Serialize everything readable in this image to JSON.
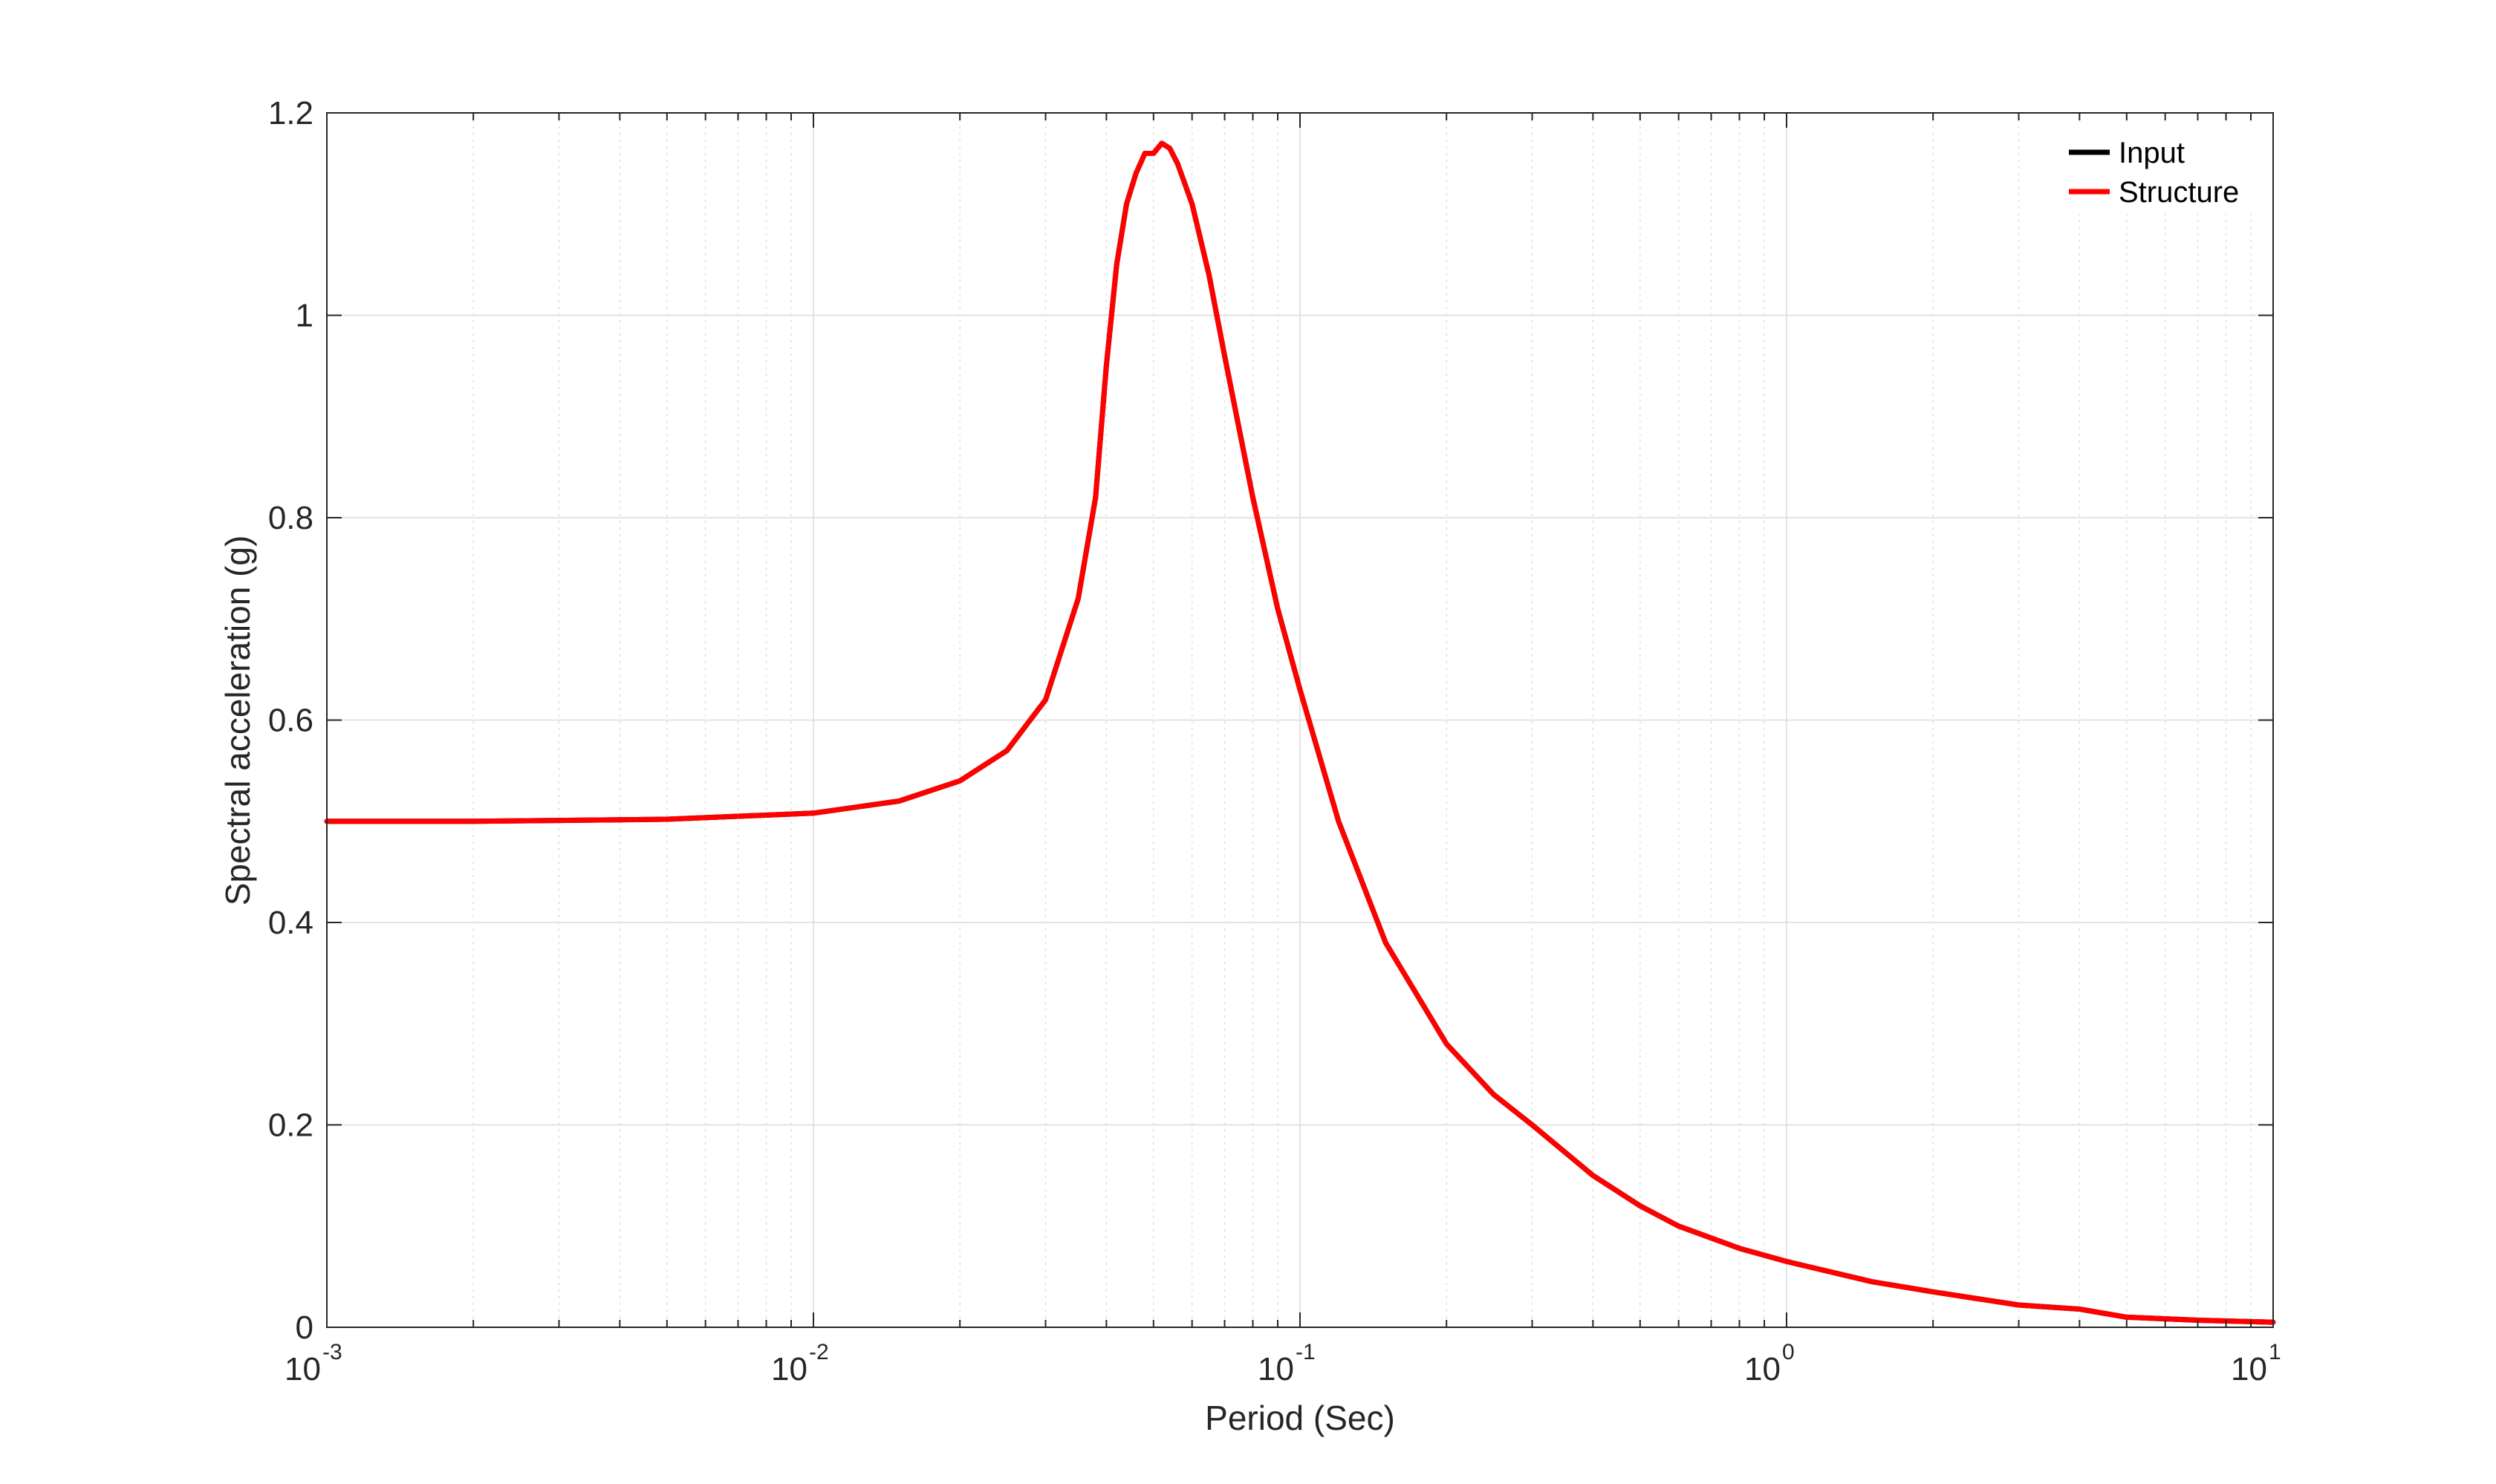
{
  "chart_data": {
    "type": "line",
    "title": "",
    "xlabel": "Period (Sec)",
    "ylabel": "Spectral acceleration (g)",
    "x_scale": "log",
    "xlim": [
      0.001,
      10
    ],
    "ylim": [
      0,
      1.2
    ],
    "grid": true,
    "legend_position": "top-right",
    "x_ticks": [
      {
        "base": "10",
        "exp": "-3",
        "value": 0.001
      },
      {
        "base": "10",
        "exp": "-2",
        "value": 0.01
      },
      {
        "base": "10",
        "exp": "-1",
        "value": 0.1
      },
      {
        "base": "10",
        "exp": "0",
        "value": 1
      },
      {
        "base": "10",
        "exp": "1",
        "value": 10
      }
    ],
    "y_ticks": [
      "0",
      "0.2",
      "0.4",
      "0.6",
      "0.8",
      "1",
      "1.2"
    ],
    "series": [
      {
        "name": "Input",
        "color": "#000000",
        "x": [
          0.001,
          0.002,
          0.005,
          0.01,
          0.015,
          0.02,
          0.025,
          0.03,
          0.035,
          0.038,
          0.04,
          0.042,
          0.044,
          0.046,
          0.048,
          0.05,
          0.052,
          0.054,
          0.056,
          0.058,
          0.06,
          0.065,
          0.07,
          0.08,
          0.09,
          0.1,
          0.12,
          0.15,
          0.2,
          0.25,
          0.3,
          0.4,
          0.5,
          0.6,
          0.8,
          1,
          1.5,
          2,
          3,
          4,
          5,
          7,
          10
        ],
        "y": [
          0.5,
          0.5,
          0.502,
          0.508,
          0.52,
          0.54,
          0.57,
          0.62,
          0.72,
          0.82,
          0.95,
          1.05,
          1.11,
          1.14,
          1.16,
          1.16,
          1.17,
          1.165,
          1.15,
          1.13,
          1.11,
          1.04,
          0.96,
          0.82,
          0.71,
          0.63,
          0.5,
          0.38,
          0.28,
          0.23,
          0.2,
          0.15,
          0.12,
          0.1,
          0.078,
          0.065,
          0.045,
          0.035,
          0.022,
          0.018,
          0.01,
          0.007,
          0.005
        ]
      },
      {
        "name": "Structure",
        "color": "#ff0000",
        "x": [
          0.001,
          0.002,
          0.005,
          0.01,
          0.015,
          0.02,
          0.025,
          0.03,
          0.035,
          0.038,
          0.04,
          0.042,
          0.044,
          0.046,
          0.048,
          0.05,
          0.052,
          0.054,
          0.056,
          0.058,
          0.06,
          0.065,
          0.07,
          0.08,
          0.09,
          0.1,
          0.12,
          0.15,
          0.2,
          0.25,
          0.3,
          0.4,
          0.5,
          0.6,
          0.8,
          1,
          1.5,
          2,
          3,
          4,
          5,
          7,
          10
        ],
        "y": [
          0.5,
          0.5,
          0.502,
          0.508,
          0.52,
          0.54,
          0.57,
          0.62,
          0.72,
          0.82,
          0.95,
          1.05,
          1.11,
          1.14,
          1.16,
          1.16,
          1.17,
          1.165,
          1.15,
          1.13,
          1.11,
          1.04,
          0.96,
          0.82,
          0.71,
          0.63,
          0.5,
          0.38,
          0.28,
          0.23,
          0.2,
          0.15,
          0.12,
          0.1,
          0.078,
          0.065,
          0.045,
          0.035,
          0.022,
          0.018,
          0.01,
          0.007,
          0.005
        ]
      }
    ]
  }
}
